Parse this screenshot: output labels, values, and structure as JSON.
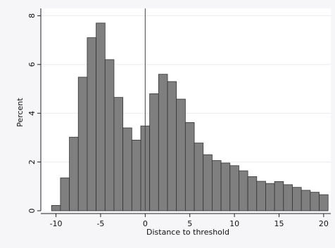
{
  "chart_data": {
    "type": "bar",
    "title": "",
    "xlabel": "Distance to threshold",
    "ylabel": "Percent",
    "xlim": [
      -11.7,
      20.8
    ],
    "ylim": [
      0,
      8.3
    ],
    "xticks": [
      -10,
      -5,
      0,
      5,
      10,
      15,
      20
    ],
    "yticks": [
      0,
      2,
      4,
      6,
      8
    ],
    "reference_line_x": 0,
    "bar_width": 1,
    "grid": true,
    "bars": [
      {
        "x": -10,
        "value": 0.22
      },
      {
        "x": -9,
        "value": 1.35
      },
      {
        "x": -8,
        "value": 3.02
      },
      {
        "x": -7,
        "value": 5.48
      },
      {
        "x": -6,
        "value": 7.1
      },
      {
        "x": -5,
        "value": 7.7
      },
      {
        "x": -4,
        "value": 6.2
      },
      {
        "x": -3,
        "value": 4.65
      },
      {
        "x": -2,
        "value": 3.4
      },
      {
        "x": -1,
        "value": 2.9
      },
      {
        "x": 0,
        "value": 3.48
      },
      {
        "x": 1,
        "value": 4.8
      },
      {
        "x": 2,
        "value": 5.6
      },
      {
        "x": 3,
        "value": 5.3
      },
      {
        "x": 4,
        "value": 4.58
      },
      {
        "x": 5,
        "value": 3.62
      },
      {
        "x": 6,
        "value": 2.78
      },
      {
        "x": 7,
        "value": 2.3
      },
      {
        "x": 8,
        "value": 2.06
      },
      {
        "x": 9,
        "value": 1.96
      },
      {
        "x": 10,
        "value": 1.85
      },
      {
        "x": 11,
        "value": 1.64
      },
      {
        "x": 12,
        "value": 1.4
      },
      {
        "x": 13,
        "value": 1.21
      },
      {
        "x": 14,
        "value": 1.12
      },
      {
        "x": 15,
        "value": 1.2
      },
      {
        "x": 16,
        "value": 1.07
      },
      {
        "x": 17,
        "value": 0.96
      },
      {
        "x": 18,
        "value": 0.84
      },
      {
        "x": 19,
        "value": 0.76
      },
      {
        "x": 20,
        "value": 0.66
      }
    ],
    "colors": {
      "bar_fill": "#7f7f7f",
      "bar_stroke": "#333333",
      "plot_background": "#ffffff",
      "outer_background": "#f6f6f9",
      "grid": "#ececf0",
      "axis": "#222222"
    }
  }
}
